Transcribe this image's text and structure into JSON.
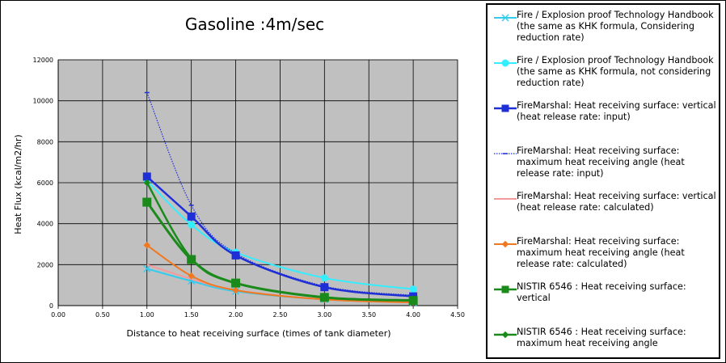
{
  "chart_data": {
    "type": "line",
    "title": "Gasoline :4m/sec",
    "xlabel": "Distance to heat receiving surface (times of tank diameter)",
    "ylabel": "Heat Flux (kcal/m2/hr)",
    "xlim": [
      0,
      4.5
    ],
    "ylim": [
      0,
      12000
    ],
    "x_ticks": [
      "0.00",
      "0.50",
      "1.00",
      "1.50",
      "2.00",
      "2.50",
      "3.00",
      "3.50",
      "4.00",
      "4.50"
    ],
    "y_ticks": [
      "0",
      "2000",
      "4000",
      "6000",
      "8000",
      "10000",
      "12000"
    ],
    "grid": true,
    "legend_position": "right",
    "series": [
      {
        "name": "Fire / Explosion proof Technology Handbook (the same as KHK formula, Considering reduction rate)",
        "color": "#33ccee",
        "marker": "x",
        "x": [
          1.0,
          1.5,
          2.0,
          3.0,
          4.0
        ],
        "y": [
          1800,
          1200,
          700,
          300,
          150
        ]
      },
      {
        "name": "Fire / Explosion proof Technology Handbook (the same as KHK formula, not considering reduction rate)",
        "color": "#33eeff",
        "marker": "circle",
        "x": [
          1.0,
          1.5,
          2.0,
          3.0,
          4.0
        ],
        "y": [
          6100,
          3950,
          2600,
          1350,
          800
        ]
      },
      {
        "name": "FireMarshal: Heat receiving surface: vertical (heat release rate: input)",
        "color": "#1f2fd6",
        "marker": "square",
        "x": [
          1.0,
          1.5,
          2.0,
          3.0,
          4.0
        ],
        "y": [
          6300,
          4350,
          2450,
          900,
          450
        ]
      },
      {
        "name": "FireMarshal: Heat receiving surface: maximum heat receiving angle (heat release rate: input)",
        "color": "#1f2fd6",
        "marker": "dash",
        "x": [
          1.0,
          1.5,
          2.0,
          3.0,
          4.0
        ],
        "y": [
          10400,
          4900,
          2550,
          950,
          500
        ]
      },
      {
        "name": "FireMarshal: Heat receiving surface: vertical (heat release rate: calculated)",
        "color": "#f59a9a",
        "marker": "none",
        "x": [
          1.0,
          1.5,
          2.0,
          3.0,
          4.0
        ],
        "y": [
          2000,
          1300,
          750,
          300,
          150
        ]
      },
      {
        "name": "FireMarshal: Heat receiving surface: maximum heat receiving angle (heat release rate: calculated)",
        "color": "#f07820",
        "marker": "diamond",
        "x": [
          1.0,
          1.5,
          2.0,
          3.0,
          4.0
        ],
        "y": [
          2950,
          1450,
          750,
          300,
          150
        ]
      },
      {
        "name": "NISTIR 6546 : Heat receiving surface: vertical",
        "color": "#1a8a1a",
        "marker": "square",
        "x": [
          1.0,
          1.5,
          2.0,
          3.0,
          4.0
        ],
        "y": [
          5050,
          2250,
          1100,
          400,
          250
        ]
      },
      {
        "name": "NISTIR 6546 : Heat receiving surface: maximum heat receiving angle",
        "color": "#1a8a1a",
        "marker": "diamond",
        "x": [
          1.0,
          1.5,
          2.0,
          3.0,
          4.0
        ],
        "y": [
          6000,
          2300,
          1100,
          400,
          250
        ]
      }
    ]
  }
}
